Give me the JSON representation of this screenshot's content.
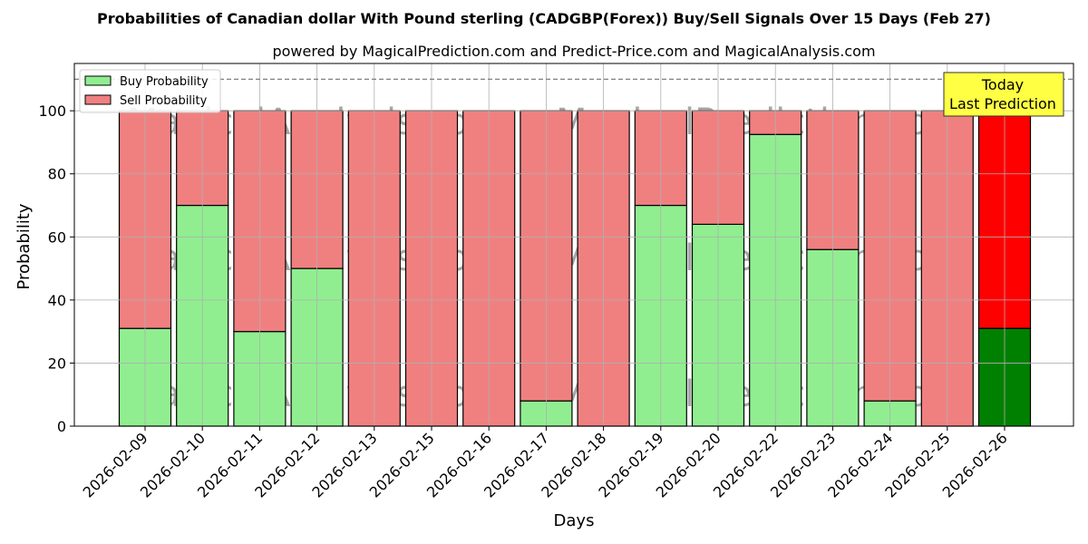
{
  "chart_data": {
    "type": "bar",
    "stacked": true,
    "title": "Probabilities of Canadian dollar With Pound sterling (CADGBP(Forex)) Buy/Sell Signals Over 15 Days (Feb 27)",
    "subtitle": "powered by MagicalPrediction.com and Predict-Price.com and MagicalAnalysis.com",
    "xlabel": "Days",
    "ylabel": "Probability",
    "ylim": [
      0,
      115
    ],
    "yticks": [
      0,
      20,
      40,
      60,
      80,
      100
    ],
    "reference_line": 110,
    "grid": true,
    "legend_position": "top-left",
    "categories": [
      "2026-02-09",
      "2026-02-10",
      "2026-02-11",
      "2026-02-12",
      "2026-02-13",
      "2026-02-15",
      "2026-02-16",
      "2026-02-17",
      "2026-02-18",
      "2026-02-19",
      "2026-02-20",
      "2026-02-22",
      "2026-02-23",
      "2026-02-24",
      "2026-02-25",
      "2026-02-26"
    ],
    "series": [
      {
        "name": "Buy Probability",
        "values": [
          31,
          70,
          30,
          50,
          0,
          0,
          0,
          8,
          0,
          70,
          64,
          92.5,
          56,
          8,
          0,
          31
        ]
      },
      {
        "name": "Sell Probability",
        "values": [
          69,
          30,
          70,
          50,
          100,
          100,
          100,
          92,
          100,
          30,
          36,
          7.5,
          44,
          92,
          100,
          69
        ]
      }
    ],
    "colors": {
      "buy": "#90ee90",
      "sell": "#f08080",
      "buy_today": "#008000",
      "sell_today": "#ff0000",
      "annotation_bg": "#ffff44"
    },
    "annotation": {
      "lines": [
        "Today",
        "Last Prediction"
      ],
      "target_category": "2026-02-26"
    },
    "watermarks": [
      "MagicalAnalysis.com",
      "MagicalPrediction.com"
    ]
  }
}
